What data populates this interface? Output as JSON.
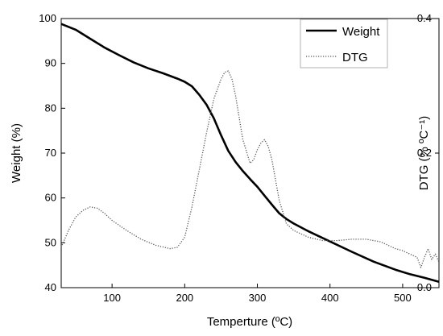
{
  "chart_data": {
    "type": "line",
    "title": "",
    "xlabel": "Temperture (ºC)",
    "ylabel": "Weight (%)",
    "y2label": "DTG (% ºC⁻¹)",
    "xlim": [
      30,
      550
    ],
    "ylim": [
      40,
      100
    ],
    "y2lim": [
      0,
      0.4
    ],
    "x_ticks": [
      100,
      200,
      300,
      400,
      500
    ],
    "y_ticks": [
      40,
      50,
      60,
      70,
      80,
      90,
      100
    ],
    "y2_ticks": [
      0.0,
      0.2,
      0.4
    ],
    "y2_tick_labels": [
      "0.0",
      "0.2",
      "0.4"
    ],
    "grid": false,
    "legend_position": "top-right",
    "series": [
      {
        "name": "Weight",
        "axis": "left",
        "style": "solid",
        "color": "#000000",
        "x": [
          30,
          50,
          70,
          90,
          110,
          130,
          150,
          170,
          190,
          200,
          210,
          220,
          230,
          240,
          250,
          260,
          270,
          280,
          290,
          300,
          310,
          320,
          330,
          340,
          350,
          370,
          400,
          430,
          460,
          490,
          510,
          530,
          550
        ],
        "y": [
          98.8,
          97.5,
          95.5,
          93.5,
          91.8,
          90.2,
          88.9,
          87.8,
          86.6,
          85.9,
          84.9,
          83.0,
          80.8,
          77.8,
          74.0,
          70.5,
          68.0,
          66.0,
          64.2,
          62.5,
          60.5,
          58.5,
          56.6,
          55.3,
          54.3,
          52.6,
          50.3,
          48.0,
          45.8,
          44.0,
          43.0,
          42.2,
          41.3
        ]
      },
      {
        "name": "DTG",
        "axis": "right",
        "style": "dotted",
        "color": "#555555",
        "x": [
          30,
          40,
          50,
          60,
          70,
          80,
          90,
          100,
          120,
          140,
          160,
          180,
          190,
          200,
          210,
          220,
          230,
          240,
          250,
          255,
          260,
          265,
          270,
          280,
          290,
          295,
          300,
          305,
          310,
          315,
          320,
          330,
          340,
          350,
          370,
          390,
          410,
          430,
          450,
          470,
          490,
          500,
          510,
          520,
          525,
          530,
          535,
          540,
          545,
          550
        ],
        "y": [
          0.06,
          0.085,
          0.105,
          0.115,
          0.12,
          0.118,
          0.11,
          0.1,
          0.085,
          0.072,
          0.063,
          0.058,
          0.06,
          0.075,
          0.12,
          0.175,
          0.23,
          0.28,
          0.31,
          0.32,
          0.322,
          0.31,
          0.285,
          0.22,
          0.185,
          0.19,
          0.205,
          0.215,
          0.22,
          0.21,
          0.19,
          0.13,
          0.095,
          0.085,
          0.075,
          0.07,
          0.07,
          0.072,
          0.072,
          0.068,
          0.058,
          0.055,
          0.05,
          0.045,
          0.03,
          0.045,
          0.058,
          0.042,
          0.05,
          0.038
        ]
      }
    ]
  }
}
